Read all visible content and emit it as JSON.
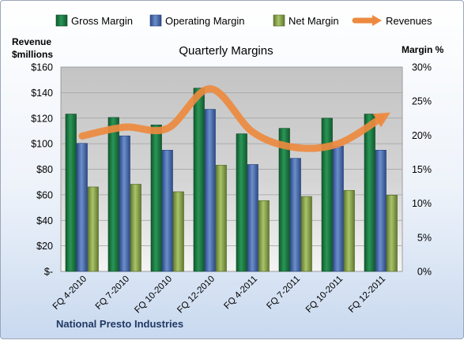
{
  "chart_data": {
    "type": "bar",
    "title": "Quarterly Margins",
    "company": "National Presto Industries",
    "left_axis_title": [
      "Revenue",
      "$millions"
    ],
    "right_axis_title": "Margin %",
    "categories": [
      "FQ 4-2010",
      "FQ 7-2010",
      "FQ 10-2010",
      "FQ 12-2010",
      "FQ 4-2011",
      "FQ 7-2011",
      "FQ 10-2011",
      "FQ 12-2011"
    ],
    "left_ticks": [
      "$-",
      "$20",
      "$40",
      "$60",
      "$80",
      "$100",
      "$120",
      "$140",
      "$160"
    ],
    "right_ticks": [
      "0%",
      "5%",
      "10%",
      "15%",
      "20%",
      "25%",
      "30%"
    ],
    "ylim_left": [
      0,
      160
    ],
    "ylim_right": [
      0,
      30
    ],
    "series": [
      {
        "name": "Gross Margin",
        "type": "bar",
        "axis": "right",
        "color": "#1e7a43",
        "values": [
          23.1,
          22.6,
          21.5,
          26.9,
          20.2,
          21.0,
          22.5,
          23.1
        ]
      },
      {
        "name": "Operating Margin",
        "type": "bar",
        "axis": "right",
        "color": "#4a6fb0",
        "values": [
          18.8,
          19.9,
          17.8,
          23.8,
          15.7,
          16.6,
          18.4,
          17.8
        ]
      },
      {
        "name": "Net Margin",
        "type": "bar",
        "axis": "right",
        "color": "#8faa4f",
        "values": [
          12.4,
          12.8,
          11.7,
          15.6,
          10.4,
          11.0,
          11.9,
          11.2
        ]
      },
      {
        "name": "Revenues",
        "type": "line",
        "axis": "left",
        "color": "#ed8a3f",
        "values": [
          106,
          113,
          112,
          143,
          109,
          97,
          100,
          120
        ]
      }
    ],
    "legend_position": "top",
    "grid": true
  }
}
